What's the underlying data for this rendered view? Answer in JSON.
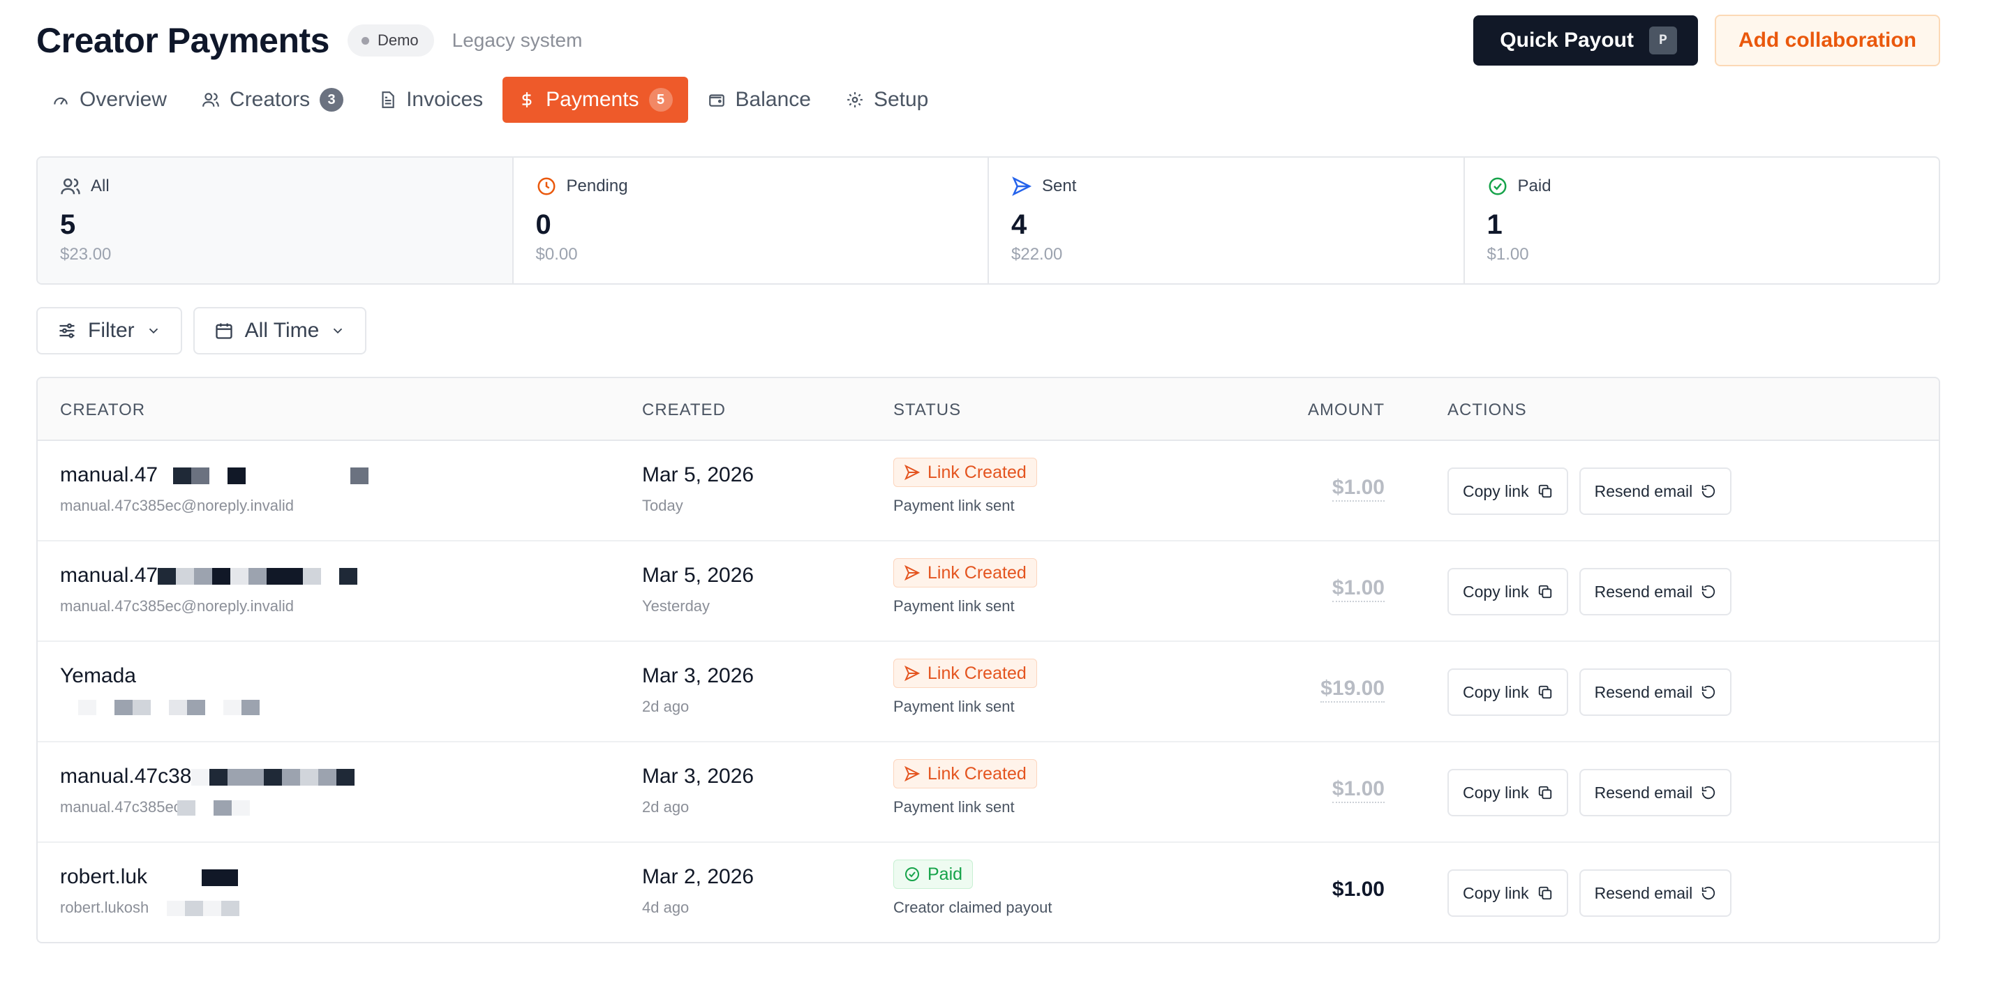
{
  "header": {
    "title": "Creator Payments",
    "demo_badge": "Demo",
    "legacy_label": "Legacy system",
    "quick_payout_label": "Quick Payout",
    "quick_payout_shortcut": "P",
    "add_collaboration_label": "Add collaboration"
  },
  "tabs": [
    {
      "label": "Overview",
      "icon": "gauge-icon"
    },
    {
      "label": "Creators",
      "icon": "users-icon",
      "count": "3"
    },
    {
      "label": "Invoices",
      "icon": "file-icon"
    },
    {
      "label": "Payments",
      "icon": "dollar-icon",
      "count": "5",
      "active": true
    },
    {
      "label": "Balance",
      "icon": "wallet-icon"
    },
    {
      "label": "Setup",
      "icon": "gear-icon"
    }
  ],
  "stats": [
    {
      "label": "All",
      "count": "5",
      "amount": "$23.00",
      "icon": "users-icon",
      "color": "#4b5563"
    },
    {
      "label": "Pending",
      "count": "0",
      "amount": "$0.00",
      "icon": "clock-icon",
      "color": "#ea580c"
    },
    {
      "label": "Sent",
      "count": "4",
      "amount": "$22.00",
      "icon": "send-icon",
      "color": "#2563eb"
    },
    {
      "label": "Paid",
      "count": "1",
      "amount": "$1.00",
      "icon": "check-circle-icon",
      "color": "#16a34a"
    }
  ],
  "filters": {
    "filter_label": "Filter",
    "time_label": "All Time"
  },
  "table": {
    "columns": {
      "creator": "CREATOR",
      "created": "CREATED",
      "status": "STATUS",
      "amount": "AMOUNT",
      "actions": "ACTIONS"
    },
    "copy_link_label": "Copy link",
    "resend_email_label": "Resend email",
    "rows": [
      {
        "name": "manual.47",
        "email": "manual.47c385ec@noreply.invalid",
        "date": "Mar 5, 2026",
        "relative": "Today",
        "status": "Link Created",
        "status_type": "created",
        "note": "Payment link sent",
        "amount": "$1.00"
      },
      {
        "name": "manual.47",
        "email": "manual.47c385ec@noreply.invalid",
        "date": "Mar 5, 2026",
        "relative": "Yesterday",
        "status": "Link Created",
        "status_type": "created",
        "note": "Payment link sent",
        "amount": "$1.00"
      },
      {
        "name": "Yemada",
        "email": "",
        "date": "Mar 3, 2026",
        "relative": "2d ago",
        "status": "Link Created",
        "status_type": "created",
        "note": "Payment link sent",
        "amount": "$19.00"
      },
      {
        "name": "manual.47c38",
        "email": "manual.47c385ec",
        "date": "Mar 3, 2026",
        "relative": "2d ago",
        "status": "Link Created",
        "status_type": "created",
        "note": "Payment link sent",
        "amount": "$1.00"
      },
      {
        "name": "robert.luk",
        "email": "robert.lukosh",
        "date": "Mar 2, 2026",
        "relative": "4d ago",
        "status": "Paid",
        "status_type": "paid",
        "note": "Creator claimed payout",
        "amount": "$1.00"
      }
    ]
  }
}
